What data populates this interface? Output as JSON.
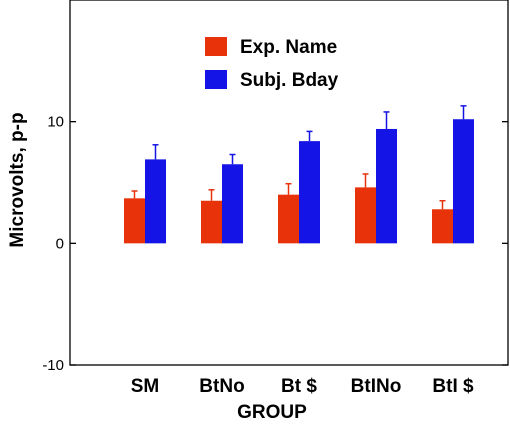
{
  "chart_data": {
    "type": "bar",
    "xlabel": "GROUP",
    "ylabel": "Microvolts, p-p",
    "categories": [
      "SM",
      "BtNo",
      "Bt $",
      "BtINo",
      "BtI $"
    ],
    "series": [
      {
        "name": "Exp. Name",
        "color": "#E8320A",
        "values": [
          3.7,
          3.5,
          4.0,
          4.6,
          2.8
        ],
        "errors": [
          0.6,
          0.9,
          0.9,
          1.1,
          0.7
        ]
      },
      {
        "name": "Subj. Bday",
        "color": "#1414E6",
        "values": [
          6.9,
          6.5,
          8.4,
          9.4,
          10.2
        ],
        "errors": [
          1.2,
          0.8,
          0.8,
          1.4,
          1.1
        ]
      }
    ],
    "ylim": [
      -10,
      20
    ],
    "yticks": [
      -10,
      0,
      10
    ],
    "grid": false,
    "legend_position": "top-center"
  }
}
